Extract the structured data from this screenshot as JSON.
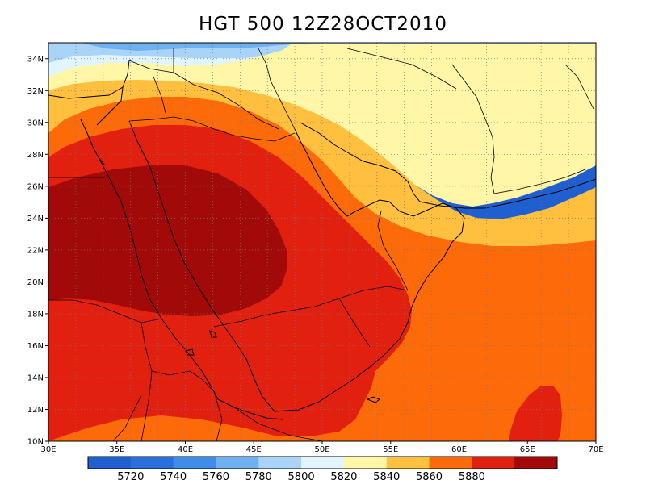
{
  "title": "HGT 500 12Z28OCT2010",
  "lat_labels": [
    "34N",
    "32N",
    "30N",
    "28N",
    "26N",
    "24N",
    "22N",
    "20N",
    "18N",
    "16N",
    "14N",
    "12N",
    "10N"
  ],
  "lon_labels": [
    "30E",
    "35E",
    "40E",
    "45E",
    "50E",
    "55E",
    "60E",
    "65E",
    "70E"
  ],
  "map": {
    "lon_range": [
      30,
      70
    ],
    "lat_range": [
      10,
      35
    ],
    "grid": "dotted 2-degree",
    "colors": {
      "5720": "#2a6fdc",
      "5740": "#3f8de8",
      "5760": "#6fb0f0",
      "5780": "#a9d3f7",
      "5800": "#e0f5ff",
      "5820": "#fff6a8",
      "5840": "#ffc040",
      "5860": "#fd6a0a",
      "5880": "#e22010",
      "5900": "#a20a0a",
      "low": "#1f5fd0"
    }
  },
  "colorbar": {
    "labels": [
      "5720",
      "5740",
      "5760",
      "5780",
      "5800",
      "5820",
      "5840",
      "5860",
      "5880"
    ],
    "colors": [
      "#1f5fd0",
      "#2a6fdc",
      "#3f8de8",
      "#6fb0f0",
      "#a9d3f7",
      "#e0f5ff",
      "#fff6a8",
      "#ffc040",
      "#fd6a0a",
      "#e22010",
      "#a20a0a"
    ]
  }
}
